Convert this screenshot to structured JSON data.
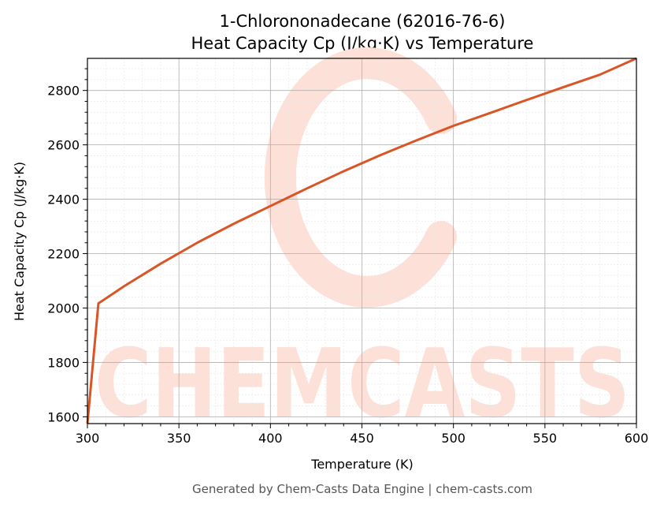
{
  "colors": {
    "line": "#d95525",
    "watermark": "#fde0d8",
    "grid_major": "#b0b0b0",
    "grid_minor": "#e6e6e6"
  },
  "watermark": {
    "text": "CHEMCASTS"
  },
  "footer": "Generated by Chem-Casts Data Engine | chem-casts.com",
  "chart_data": {
    "type": "line",
    "title": [
      "1-Chlorononadecane (62016-76-6)",
      "Heat Capacity Cp (J/kg·K) vs Temperature"
    ],
    "xlabel": "Temperature (K)",
    "ylabel": "Heat Capacity Cp (J/kg·K)",
    "xlim": [
      300,
      600
    ],
    "ylim": [
      1575,
      2918
    ],
    "xticks": [
      300,
      350,
      400,
      450,
      500,
      550,
      600
    ],
    "yticks": [
      1600,
      1800,
      2000,
      2200,
      2400,
      2600,
      2800
    ],
    "grid": true,
    "series": [
      {
        "x": [
          300,
          306,
          320,
          340,
          360,
          380,
          400,
          420,
          440,
          460,
          480,
          500,
          520,
          540,
          560,
          580,
          600
        ],
        "values": [
          1575,
          2017,
          2080,
          2163,
          2240,
          2310,
          2375,
          2440,
          2503,
          2562,
          2617,
          2670,
          2717,
          2765,
          2812,
          2858,
          2918
        ]
      }
    ]
  }
}
